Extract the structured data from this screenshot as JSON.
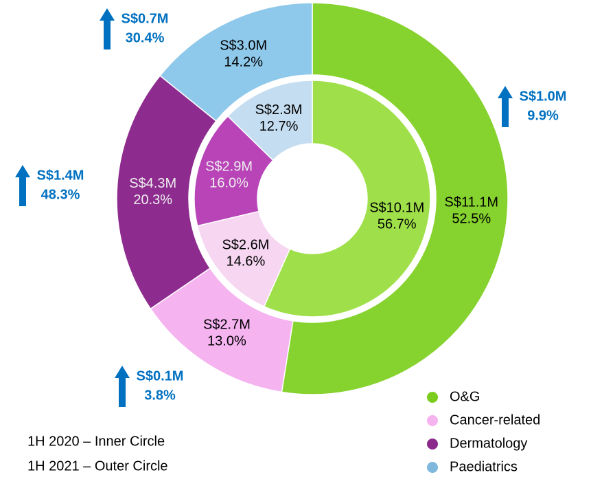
{
  "chart_data": {
    "type": "donut",
    "categories": [
      "O&G",
      "Cancer-related",
      "Dermatology",
      "Paediatrics"
    ],
    "colors": [
      "#7ccc1e",
      "#f5b4f0",
      "#8b2a8b",
      "#7fb8dc"
    ],
    "series": [
      {
        "values": [
          56.7,
          14.6,
          16.0,
          12.7
        ],
        "value_labels": [
          "56.7%",
          "14.6%",
          "16.0%",
          "12.7%"
        ],
        "amounts": [
          "S$10.1M",
          "S$2.6M",
          "S$2.9M",
          "S$2.3M"
        ],
        "colors": [
          "#9fe04a",
          "#f6d6f1",
          "#b844b8",
          "#c5ddf0"
        ]
      },
      {
        "values": [
          52.5,
          13.0,
          20.3,
          14.2
        ],
        "value_labels": [
          "52.5%",
          "13.0%",
          "20.3%",
          "14.2%"
        ],
        "amounts": [
          "S$11.1M",
          "S$2.7M",
          "S$4.3M",
          "S$3.0M"
        ],
        "colors": [
          "#86d22e",
          "#f5b3f0",
          "#8e2b8e",
          "#8ec8ea"
        ]
      }
    ],
    "changes": [
      {
        "amount": "S$1.0M",
        "percent": "9.9%"
      },
      {
        "amount": "S$0.1M",
        "percent": "3.8%"
      },
      {
        "amount": "S$1.4M",
        "percent": "48.3%"
      },
      {
        "amount": "S$0.7M",
        "percent": "30.4%"
      }
    ],
    "notes": [
      "1H 2020 – Inner Circle",
      "1H 2021 – Outer Circle"
    ]
  }
}
